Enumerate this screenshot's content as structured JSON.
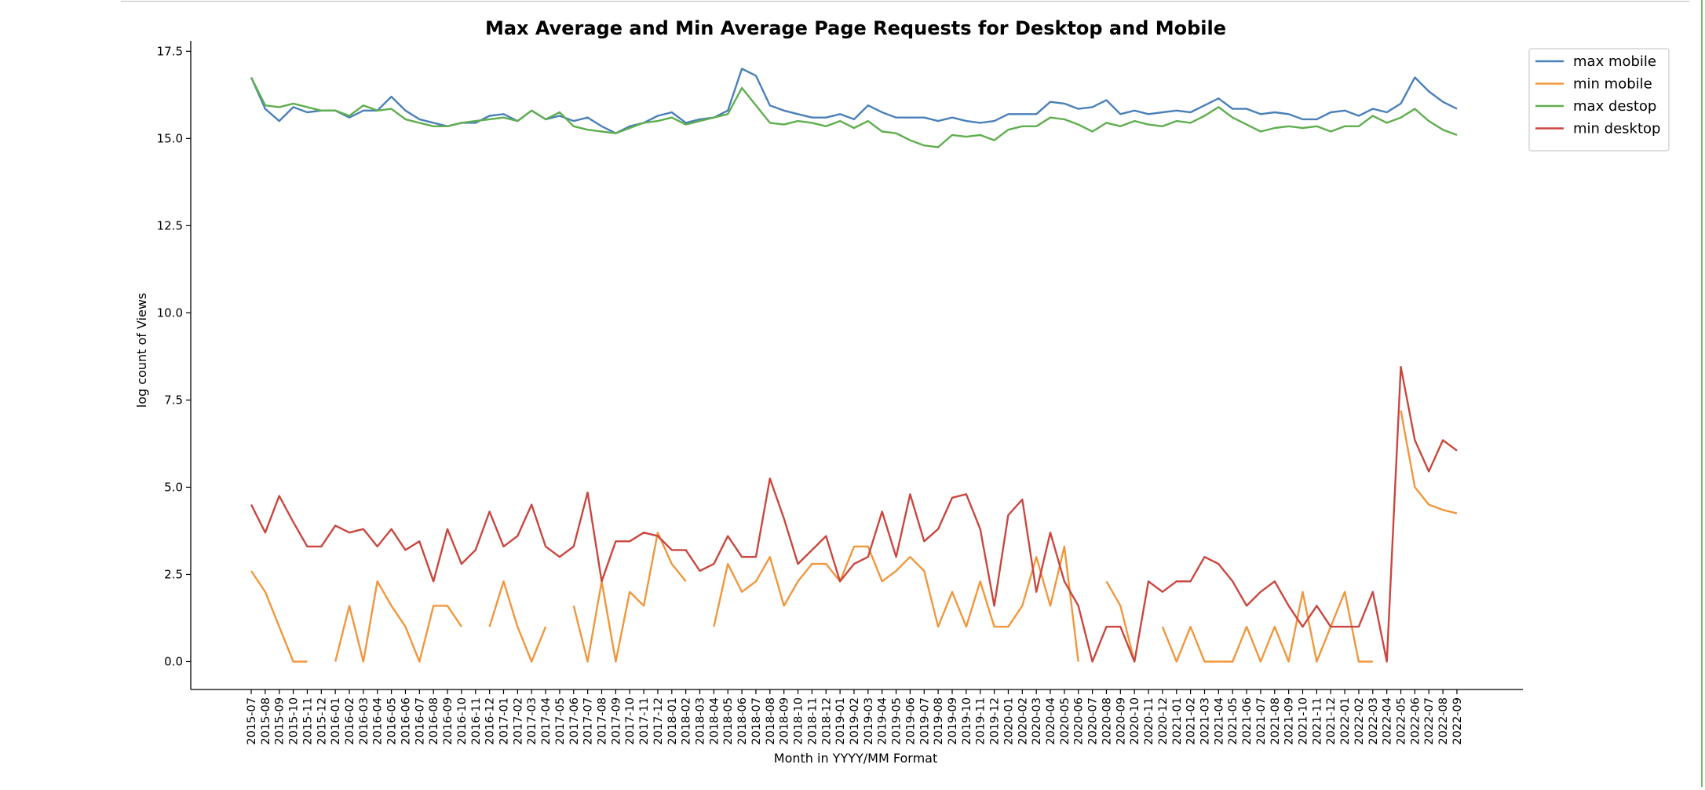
{
  "chart_data": {
    "type": "line",
    "title": "Max Average and Min Average Page Requests for Desktop and Mobile",
    "xlabel": "Month in YYYY/MM Format",
    "ylabel": "log count of Views",
    "ylim": [
      -0.8,
      17.8
    ],
    "yticks": [
      0.0,
      2.5,
      5.0,
      7.5,
      10.0,
      12.5,
      15.0,
      17.5
    ],
    "ytick_labels": [
      "0.0",
      "2.5",
      "5.0",
      "7.5",
      "10.0",
      "12.5",
      "15.0",
      "17.5"
    ],
    "legend_position": "top-right",
    "grid": false,
    "x": [
      "2015-07",
      "2015-08",
      "2015-09",
      "2015-10",
      "2015-11",
      "2015-12",
      "2016-01",
      "2016-02",
      "2016-03",
      "2016-04",
      "2016-05",
      "2016-06",
      "2016-07",
      "2016-08",
      "2016-09",
      "2016-10",
      "2016-11",
      "2016-12",
      "2017-01",
      "2017-02",
      "2017-03",
      "2017-04",
      "2017-05",
      "2017-06",
      "2017-07",
      "2017-08",
      "2017-09",
      "2017-10",
      "2017-11",
      "2017-12",
      "2018-01",
      "2018-02",
      "2018-03",
      "2018-04",
      "2018-05",
      "2018-06",
      "2018-07",
      "2018-08",
      "2018-09",
      "2018-10",
      "2018-11",
      "2018-12",
      "2019-01",
      "2019-02",
      "2019-03",
      "2019-04",
      "2019-05",
      "2019-06",
      "2019-07",
      "2019-08",
      "2019-09",
      "2019-10",
      "2019-11",
      "2019-12",
      "2020-01",
      "2020-02",
      "2020-03",
      "2020-04",
      "2020-05",
      "2020-06",
      "2020-07",
      "2020-08",
      "2020-09",
      "2020-10",
      "2020-11",
      "2020-12",
      "2021-01",
      "2021-02",
      "2021-03",
      "2021-04",
      "2021-05",
      "2021-06",
      "2021-07",
      "2021-08",
      "2021-09",
      "2021-10",
      "2021-11",
      "2021-12",
      "2022-01",
      "2022-02",
      "2022-03",
      "2022-04",
      "2022-05",
      "2022-06",
      "2022-07",
      "2022-08",
      "2022-09"
    ],
    "series": [
      {
        "name": "max mobile",
        "color": "#4a80b8",
        "values": [
          16.75,
          15.85,
          15.5,
          15.9,
          15.75,
          15.8,
          15.8,
          15.6,
          15.8,
          15.8,
          16.2,
          15.8,
          15.55,
          15.45,
          15.35,
          15.45,
          15.45,
          15.65,
          15.7,
          15.5,
          15.8,
          15.55,
          15.65,
          15.5,
          15.6,
          15.35,
          15.15,
          15.35,
          15.45,
          15.65,
          15.75,
          15.45,
          15.55,
          15.6,
          15.8,
          17.0,
          16.8,
          15.95,
          15.8,
          15.7,
          15.6,
          15.6,
          15.7,
          15.55,
          15.95,
          15.75,
          15.6,
          15.6,
          15.6,
          15.5,
          15.6,
          15.5,
          15.45,
          15.5,
          15.7,
          15.7,
          15.7,
          16.05,
          16.0,
          15.85,
          15.9,
          16.1,
          15.7,
          15.8,
          15.7,
          15.75,
          15.8,
          15.75,
          15.95,
          16.15,
          15.85,
          15.85,
          15.7,
          15.75,
          15.7,
          15.55,
          15.55,
          15.75,
          15.8,
          15.65,
          15.85,
          15.75,
          16.0,
          16.75,
          16.35,
          16.05,
          15.85
        ]
      },
      {
        "name": "min mobile",
        "color": "#f0973d",
        "values": [
          2.6,
          2.0,
          1.0,
          0.0,
          0.0,
          null,
          0.0,
          1.6,
          0.0,
          2.3,
          1.6,
          1.0,
          0.0,
          1.6,
          1.6,
          1.0,
          null,
          1.0,
          2.3,
          1.0,
          0.0,
          1.0,
          null,
          1.6,
          0.0,
          2.3,
          0.0,
          2.0,
          1.6,
          3.7,
          2.8,
          2.3,
          null,
          1.0,
          2.8,
          2.0,
          2.3,
          3.0,
          1.6,
          2.3,
          2.8,
          2.8,
          2.3,
          3.3,
          3.3,
          2.3,
          2.6,
          3.0,
          2.6,
          1.0,
          2.0,
          1.0,
          2.3,
          1.0,
          1.0,
          1.6,
          3.0,
          1.6,
          3.3,
          0.0,
          null,
          2.3,
          1.6,
          0.0,
          null,
          1.0,
          0.0,
          1.0,
          0.0,
          0.0,
          0.0,
          1.0,
          0.0,
          1.0,
          0.0,
          2.0,
          0.0,
          1.0,
          2.0,
          0.0,
          0.0,
          null,
          7.2,
          5.0,
          4.5,
          4.35,
          4.25
        ]
      },
      {
        "name": "max destop",
        "color": "#5fae4f",
        "values": [
          16.75,
          15.95,
          15.9,
          16.0,
          15.9,
          15.8,
          15.8,
          15.65,
          15.95,
          15.8,
          15.85,
          15.55,
          15.45,
          15.35,
          15.35,
          15.45,
          15.5,
          15.55,
          15.6,
          15.5,
          15.8,
          15.55,
          15.75,
          15.35,
          15.25,
          15.2,
          15.15,
          15.3,
          15.45,
          15.5,
          15.6,
          15.4,
          15.5,
          15.6,
          15.7,
          16.45,
          15.95,
          15.45,
          15.4,
          15.5,
          15.45,
          15.35,
          15.5,
          15.3,
          15.5,
          15.2,
          15.15,
          14.95,
          14.8,
          14.75,
          15.1,
          15.05,
          15.1,
          14.95,
          15.25,
          15.35,
          15.35,
          15.6,
          15.55,
          15.4,
          15.2,
          15.45,
          15.35,
          15.5,
          15.4,
          15.35,
          15.5,
          15.45,
          15.65,
          15.9,
          15.6,
          15.4,
          15.2,
          15.3,
          15.35,
          15.3,
          15.35,
          15.2,
          15.35,
          15.35,
          15.65,
          15.45,
          15.6,
          15.85,
          15.5,
          15.25,
          15.1
        ]
      },
      {
        "name": "min desktop",
        "color": "#c9473f",
        "values": [
          4.5,
          3.7,
          4.75,
          4.0,
          3.3,
          3.3,
          3.9,
          3.7,
          3.8,
          3.3,
          3.8,
          3.2,
          3.45,
          2.3,
          3.8,
          2.8,
          3.2,
          4.3,
          3.3,
          3.6,
          4.5,
          3.3,
          3.0,
          3.3,
          4.85,
          2.3,
          3.45,
          3.45,
          3.7,
          3.6,
          3.2,
          3.2,
          2.6,
          2.8,
          3.6,
          3.0,
          3.0,
          5.25,
          4.1,
          2.8,
          3.2,
          3.6,
          2.3,
          2.8,
          3.0,
          4.3,
          3.0,
          4.8,
          3.45,
          3.8,
          4.7,
          4.8,
          3.8,
          1.6,
          4.2,
          4.65,
          2.0,
          3.7,
          2.3,
          1.6,
          0.0,
          1.0,
          1.0,
          0.0,
          2.3,
          2.0,
          2.3,
          2.3,
          3.0,
          2.8,
          2.3,
          1.6,
          2.0,
          2.3,
          1.6,
          1.0,
          1.6,
          1.0,
          1.0,
          1.0,
          2.0,
          0.0,
          8.45,
          6.35,
          5.45,
          6.35,
          6.05
        ]
      }
    ]
  }
}
